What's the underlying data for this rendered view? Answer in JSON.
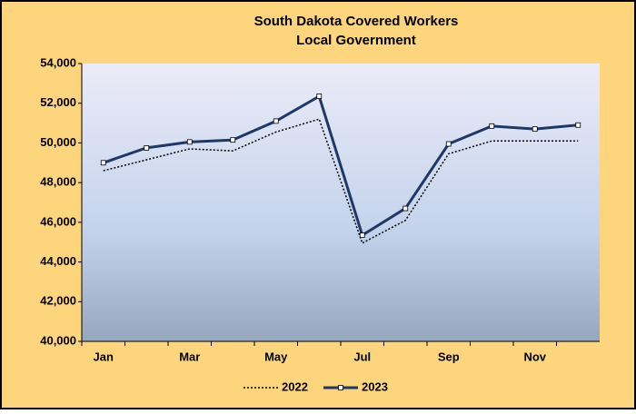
{
  "chart_data": {
    "type": "line",
    "title": "South Dakota Covered Workers",
    "subtitle": "Local Government",
    "categories": [
      "Jan",
      null,
      "Mar",
      null,
      "May",
      null,
      "Jul",
      null,
      "Sep",
      null,
      "Nov",
      null
    ],
    "series": [
      {
        "name": "2022",
        "color": "#000000",
        "line_style": "dotted",
        "marker": "none",
        "values": [
          48600,
          49150,
          49700,
          49600,
          50550,
          51200,
          44950,
          46100,
          49450,
          50100,
          50100,
          50100
        ]
      },
      {
        "name": "2023",
        "color": "#1f3864",
        "line_style": "solid",
        "marker": "square",
        "values": [
          49000,
          49750,
          50050,
          50150,
          51100,
          52350,
          45350,
          46700,
          49950,
          50850,
          50700,
          50900
        ]
      }
    ],
    "ylim": [
      40000,
      54000
    ],
    "yticks": [
      {
        "value": 40000,
        "label": "40,000"
      },
      {
        "value": 42000,
        "label": "42,000"
      },
      {
        "value": 44000,
        "label": "44,000"
      },
      {
        "value": 46000,
        "label": "46,000"
      },
      {
        "value": 48000,
        "label": "48,000"
      },
      {
        "value": 50000,
        "label": "50,000"
      },
      {
        "value": 52000,
        "label": "52,000"
      },
      {
        "value": 54000,
        "label": "54,000"
      }
    ],
    "grid": false,
    "legend": "bottom"
  }
}
